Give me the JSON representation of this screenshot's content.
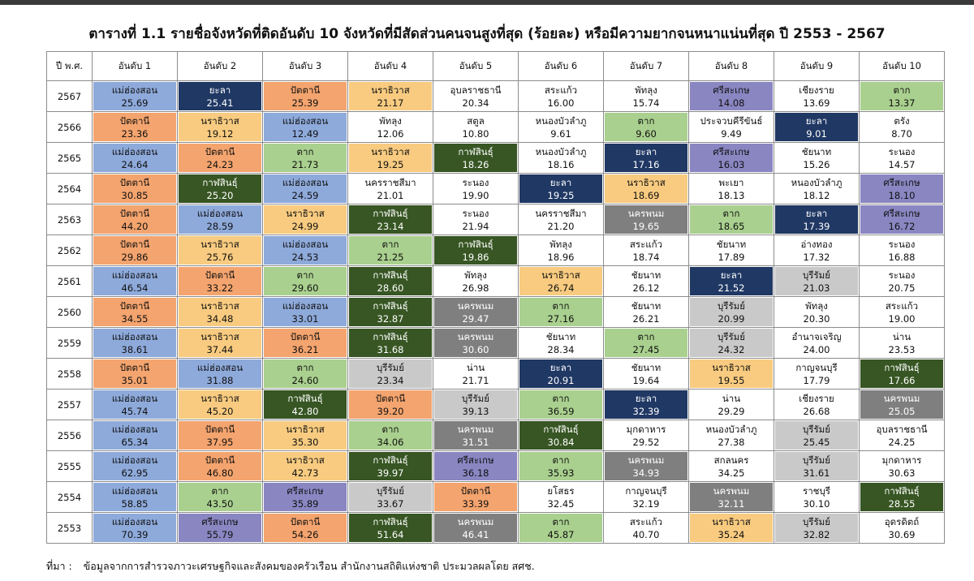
{
  "header": {
    "title": "ตารางที่ 1.1 รายชื่อจังหวัดที่ติดอันดับ 10 จังหวัดที่มีสัดส่วนคนจนสูงที่สุด (ร้อยละ) หรือมีความยากจนหนาแน่นที่สุด ปี 2553 - 2567"
  },
  "table": {
    "columns": [
      "ปี พ.ศ.",
      "อันดับ 1",
      "อันดับ 2",
      "อันดับ 3",
      "อันดับ 4",
      "อันดับ 5",
      "อันดับ 6",
      "อันดับ 7",
      "อันดับ 8",
      "อันดับ 9",
      "อันดับ 10"
    ],
    "cell_colors": {
      "แม่ฮ่องสอน": "#8eaadb",
      "ยะลา": "#203864",
      "ปัตตานี": "#f4a46e",
      "นราธิวาส": "#f8cb80",
      "ศรีสะเกษ": "#8a86c2",
      "ตาก": "#a9d08e",
      "กาฬสินธุ์": "#375623",
      "นครพนม": "#7f7f7f",
      "บุรีรัมย์": "#c9c9c9"
    },
    "rows": [
      {
        "year": "2567",
        "cells": [
          [
            "แม่ฮ่องสอน",
            "25.69"
          ],
          [
            "ยะลา",
            "25.41"
          ],
          [
            "ปัตตานี",
            "25.39"
          ],
          [
            "นราธิวาส",
            "21.17"
          ],
          [
            "อุบลราชธานี",
            "20.34"
          ],
          [
            "สระแก้ว",
            "16.00"
          ],
          [
            "พัทลุง",
            "15.74"
          ],
          [
            "ศรีสะเกษ",
            "14.08"
          ],
          [
            "เชียงราย",
            "13.69"
          ],
          [
            "ตาก",
            "13.37"
          ]
        ]
      },
      {
        "year": "2566",
        "cells": [
          [
            "ปัตตานี",
            "23.36"
          ],
          [
            "นราธิวาส",
            "19.12"
          ],
          [
            "แม่ฮ่องสอน",
            "12.49"
          ],
          [
            "พัทลุง",
            "12.06"
          ],
          [
            "สตูล",
            "10.80"
          ],
          [
            "หนองบัวลำภู",
            "9.61"
          ],
          [
            "ตาก",
            "9.60"
          ],
          [
            "ประจวบคีรีขันธ์",
            "9.49"
          ],
          [
            "ยะลา",
            "9.01"
          ],
          [
            "ตรัง",
            "8.70"
          ]
        ]
      },
      {
        "year": "2565",
        "cells": [
          [
            "แม่ฮ่องสอน",
            "24.64"
          ],
          [
            "ปัตตานี",
            "24.23"
          ],
          [
            "ตาก",
            "21.73"
          ],
          [
            "นราธิวาส",
            "19.25"
          ],
          [
            "กาฬสินธุ์",
            "18.26"
          ],
          [
            "หนองบัวลำภู",
            "18.16"
          ],
          [
            "ยะลา",
            "17.16"
          ],
          [
            "ศรีสะเกษ",
            "16.03"
          ],
          [
            "ชัยนาท",
            "15.26"
          ],
          [
            "ระนอง",
            "14.57"
          ]
        ]
      },
      {
        "year": "2564",
        "cells": [
          [
            "ปัตตานี",
            "30.85"
          ],
          [
            "กาฬสินธุ์",
            "25.20"
          ],
          [
            "แม่ฮ่องสอน",
            "24.59"
          ],
          [
            "นครราชสีมา",
            "21.01"
          ],
          [
            "ระนอง",
            "19.90"
          ],
          [
            "ยะลา",
            "19.25"
          ],
          [
            "นราธิวาส",
            "18.69"
          ],
          [
            "พะเยา",
            "18.13"
          ],
          [
            "หนองบัวลำภู",
            "18.12"
          ],
          [
            "ศรีสะเกษ",
            "18.10"
          ]
        ]
      },
      {
        "year": "2563",
        "cells": [
          [
            "ปัตตานี",
            "44.20"
          ],
          [
            "แม่ฮ่องสอน",
            "28.59"
          ],
          [
            "นราธิวาส",
            "24.99"
          ],
          [
            "กาฬสินธุ์",
            "23.14"
          ],
          [
            "ระนอง",
            "21.94"
          ],
          [
            "นครราชสีมา",
            "21.20"
          ],
          [
            "นครพนม",
            "19.65"
          ],
          [
            "ตาก",
            "18.65"
          ],
          [
            "ยะลา",
            "17.39"
          ],
          [
            "ศรีสะเกษ",
            "16.72"
          ]
        ]
      },
      {
        "year": "2562",
        "cells": [
          [
            "ปัตตานี",
            "29.86"
          ],
          [
            "นราธิวาส",
            "25.76"
          ],
          [
            "แม่ฮ่องสอน",
            "24.53"
          ],
          [
            "ตาก",
            "21.25"
          ],
          [
            "กาฬสินธุ์",
            "19.86"
          ],
          [
            "พัทลุง",
            "18.96"
          ],
          [
            "สระแก้ว",
            "18.74"
          ],
          [
            "ชัยนาท",
            "17.89"
          ],
          [
            "อ่างทอง",
            "17.32"
          ],
          [
            "ระนอง",
            "16.88"
          ]
        ]
      },
      {
        "year": "2561",
        "cells": [
          [
            "แม่ฮ่องสอน",
            "46.54"
          ],
          [
            "ปัตตานี",
            "33.22"
          ],
          [
            "ตาก",
            "29.60"
          ],
          [
            "กาฬสินธุ์",
            "28.60"
          ],
          [
            "พัทลุง",
            "26.98"
          ],
          [
            "นราธิวาส",
            "26.74"
          ],
          [
            "ชัยนาท",
            "26.12"
          ],
          [
            "ยะลา",
            "21.52"
          ],
          [
            "บุรีรัมย์",
            "21.03"
          ],
          [
            "ระนอง",
            "20.75"
          ]
        ]
      },
      {
        "year": "2560",
        "cells": [
          [
            "ปัตตานี",
            "34.55"
          ],
          [
            "นราธิวาส",
            "34.48"
          ],
          [
            "แม่ฮ่องสอน",
            "33.01"
          ],
          [
            "กาฬสินธุ์",
            "32.87"
          ],
          [
            "นครพนม",
            "29.47"
          ],
          [
            "ตาก",
            "27.16"
          ],
          [
            "ชัยนาท",
            "26.21"
          ],
          [
            "บุรีรัมย์",
            "20.99"
          ],
          [
            "พัทลุง",
            "20.30"
          ],
          [
            "สระแก้ว",
            "19.00"
          ]
        ]
      },
      {
        "year": "2559",
        "cells": [
          [
            "แม่ฮ่องสอน",
            "38.61"
          ],
          [
            "นราธิวาส",
            "37.44"
          ],
          [
            "ปัตตานี",
            "36.21"
          ],
          [
            "กาฬสินธุ์",
            "31.68"
          ],
          [
            "นครพนม",
            "30.60"
          ],
          [
            "ชัยนาท",
            "28.34"
          ],
          [
            "ตาก",
            "27.45"
          ],
          [
            "บุรีรัมย์",
            "24.32"
          ],
          [
            "อำนาจเจริญ",
            "24.00"
          ],
          [
            "น่าน",
            "23.53"
          ]
        ]
      },
      {
        "year": "2558",
        "cells": [
          [
            "ปัตตานี",
            "35.01"
          ],
          [
            "แม่ฮ่องสอน",
            "31.88"
          ],
          [
            "ตาก",
            "24.60"
          ],
          [
            "บุรีรัมย์",
            "23.34"
          ],
          [
            "น่าน",
            "21.71"
          ],
          [
            "ยะลา",
            "20.91"
          ],
          [
            "ชัยนาท",
            "19.64"
          ],
          [
            "นราธิวาส",
            "19.55"
          ],
          [
            "กาญจนบุรี",
            "17.79"
          ],
          [
            "กาฬสินธุ์",
            "17.66"
          ]
        ]
      },
      {
        "year": "2557",
        "cells": [
          [
            "แม่ฮ่องสอน",
            "45.74"
          ],
          [
            "นราธิวาส",
            "45.20"
          ],
          [
            "กาฬสินธุ์",
            "42.80"
          ],
          [
            "ปัตตานี",
            "39.20"
          ],
          [
            "บุรีรัมย์",
            "39.13"
          ],
          [
            "ตาก",
            "36.59"
          ],
          [
            "ยะลา",
            "32.39"
          ],
          [
            "น่าน",
            "29.29"
          ],
          [
            "เชียงราย",
            "26.68"
          ],
          [
            "นครพนม",
            "25.05"
          ]
        ]
      },
      {
        "year": "2556",
        "cells": [
          [
            "แม่ฮ่องสอน",
            "65.34"
          ],
          [
            "ปัตตานี",
            "37.95"
          ],
          [
            "นราธิวาส",
            "35.30"
          ],
          [
            "ตาก",
            "34.06"
          ],
          [
            "นครพนม",
            "31.51"
          ],
          [
            "กาฬสินธุ์",
            "30.84"
          ],
          [
            "มุกดาหาร",
            "29.52"
          ],
          [
            "หนองบัวลำภู",
            "27.38"
          ],
          [
            "บุรีรัมย์",
            "25.45"
          ],
          [
            "อุบลราชธานี",
            "24.25"
          ]
        ]
      },
      {
        "year": "2555",
        "cells": [
          [
            "แม่ฮ่องสอน",
            "62.95"
          ],
          [
            "ปัตตานี",
            "46.80"
          ],
          [
            "นราธิวาส",
            "42.73"
          ],
          [
            "กาฬสินธุ์",
            "39.97"
          ],
          [
            "ศรีสะเกษ",
            "36.18"
          ],
          [
            "ตาก",
            "35.93"
          ],
          [
            "นครพนม",
            "34.93"
          ],
          [
            "สกลนคร",
            "34.25"
          ],
          [
            "บุรีรัมย์",
            "31.61"
          ],
          [
            "มุกดาหาร",
            "30.63"
          ]
        ]
      },
      {
        "year": "2554",
        "cells": [
          [
            "แม่ฮ่องสอน",
            "58.85"
          ],
          [
            "ตาก",
            "43.50"
          ],
          [
            "ศรีสะเกษ",
            "35.89"
          ],
          [
            "บุรีรัมย์",
            "33.67"
          ],
          [
            "ปัตตานี",
            "33.39"
          ],
          [
            "ยโสธร",
            "32.45"
          ],
          [
            "กาญจนบุรี",
            "32.19"
          ],
          [
            "นครพนม",
            "32.11"
          ],
          [
            "ราชบุรี",
            "30.10"
          ],
          [
            "กาฬสินธุ์",
            "28.55"
          ]
        ]
      },
      {
        "year": "2553",
        "cells": [
          [
            "แม่ฮ่องสอน",
            "70.39"
          ],
          [
            "ศรีสะเกษ",
            "55.79"
          ],
          [
            "ปัตตานี",
            "54.26"
          ],
          [
            "กาฬสินธุ์",
            "51.64"
          ],
          [
            "นครพนม",
            "46.41"
          ],
          [
            "ตาก",
            "45.87"
          ],
          [
            "สระแก้ว",
            "40.70"
          ],
          [
            "นราธิวาส",
            "35.24"
          ],
          [
            "บุรีรัมย์",
            "32.82"
          ],
          [
            "อุดรดิตถ์",
            "30.69"
          ]
        ]
      }
    ]
  },
  "footer": {
    "label": "ที่มา :",
    "text": "ข้อมูลจากการสำรวจภาวะเศรษฐกิจและสังคมของครัวเรือน สำนักงานสถิติแห่งชาติ ประมวลผลโดย สศช."
  }
}
